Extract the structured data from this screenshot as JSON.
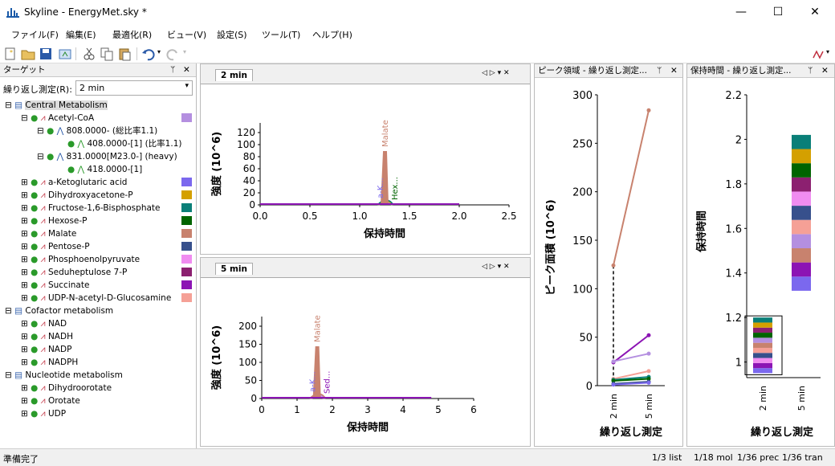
{
  "window": {
    "title": "Skyline - EnergyMet.sky *",
    "minimize": "—",
    "maximize": "☐",
    "close": "✕"
  },
  "menu": [
    "ファイル(F)",
    "編集(E)",
    "最適化(R)",
    "ビュー(V)",
    "設定(S)",
    "ツール(T)",
    "ヘルプ(H)"
  ],
  "targets": {
    "title": "ターゲット",
    "replicate_label": "繰り返し測定(R):",
    "replicate_value": "2 min",
    "groups": [
      {
        "name": "Central Metabolism",
        "children": [
          {
            "name": "Acetyl-CoA",
            "color": "#b48fe0",
            "expanded": true,
            "precursors": [
              {
                "label": "808.0000- (総比率1.1)",
                "transition": "408.0000-[1] (比率1.1)"
              },
              {
                "label": "831.0000[M23.0-] (heavy)",
                "transition": "418.0000-[1]"
              }
            ]
          },
          {
            "name": "a-Ketoglutaric acid",
            "color": "#7b68ee"
          },
          {
            "name": "Dihydroxyacetone-P",
            "color": "#d4a000"
          },
          {
            "name": "Fructose-1,6-Bisphosphate",
            "color": "#0a7f78"
          },
          {
            "name": "Hexose-P",
            "color": "#006400"
          },
          {
            "name": "Malate",
            "color": "#c8826e"
          },
          {
            "name": "Pentose-P",
            "color": "#37508c"
          },
          {
            "name": "Phosphoenolpyruvate",
            "color": "#f08cf0"
          },
          {
            "name": "Seduheptulose 7-P",
            "color": "#8c2070"
          },
          {
            "name": "Succinate",
            "color": "#8c14b4"
          },
          {
            "name": "UDP-N-acetyl-D-Glucosamine",
            "color": "#f5a096"
          }
        ]
      },
      {
        "name": "Cofactor metabolism",
        "children": [
          {
            "name": "NAD"
          },
          {
            "name": "NADH"
          },
          {
            "name": "NADP"
          },
          {
            "name": "NADPH"
          }
        ]
      },
      {
        "name": "Nucleotide metabolism",
        "children": [
          {
            "name": "Dihydroorotate"
          },
          {
            "name": "Orotate"
          },
          {
            "name": "UDP"
          }
        ]
      }
    ]
  },
  "chrom1": {
    "tab": "2 min",
    "ylabel": "強度 (10^6)",
    "xlabel": "保持時間",
    "yticks": [
      "0",
      "20",
      "40",
      "60",
      "80",
      "100",
      "120"
    ],
    "xticks": [
      "0.0",
      "0.5",
      "1.0",
      "1.5",
      "2.0",
      "2.5"
    ],
    "peak_labels": [
      "Malate",
      "a-K...",
      "Hex..."
    ]
  },
  "chrom2": {
    "tab": "5 min",
    "ylabel": "強度 (10^6)",
    "xlabel": "保持時間",
    "yticks": [
      "0",
      "50",
      "100",
      "150",
      "200"
    ],
    "xticks": [
      "0",
      "1",
      "2",
      "3",
      "4",
      "5",
      "6"
    ],
    "peak_labels": [
      "Malate",
      "a-K...",
      "Sed..."
    ]
  },
  "peakarea": {
    "title": "ピーク領域 - 繰り返し測定...",
    "ylabel": "ピーク面積 (10^6)",
    "xlabel": "繰り返し測定",
    "yticks": [
      "0",
      "50",
      "100",
      "150",
      "200",
      "250",
      "300"
    ],
    "categories": [
      "2 min",
      "5 min"
    ],
    "chart_data": {
      "type": "line",
      "categories": [
        "2 min",
        "5 min"
      ],
      "ylim": [
        0,
        300
      ],
      "series": [
        {
          "color": "#c8826e",
          "values": [
            124,
            284
          ]
        },
        {
          "color": "#8c14b4",
          "values": [
            24,
            52
          ]
        },
        {
          "color": "#b48fe0",
          "values": [
            25,
            33
          ]
        },
        {
          "color": "#f5a096",
          "values": [
            7,
            15
          ]
        },
        {
          "color": "#0a7f78",
          "values": [
            6,
            9
          ]
        },
        {
          "color": "#006400",
          "values": [
            5,
            7
          ]
        },
        {
          "color": "#37508c",
          "values": [
            2,
            4
          ]
        },
        {
          "color": "#7b68ee",
          "values": [
            1,
            3
          ]
        }
      ]
    }
  },
  "retention": {
    "title": "保持時間 - 繰り返し測定...",
    "ylabel": "保持時間",
    "xlabel": "繰り返し測定",
    "yticks": [
      "1",
      "1.2",
      "1.4",
      "1.6",
      "1.8",
      "2",
      "2.2"
    ],
    "categories": [
      "2 min",
      "5 min"
    ],
    "chart_data": {
      "type": "bar",
      "categories": [
        "2 min",
        "5 min"
      ],
      "ylim": [
        0.93,
        2.2
      ],
      "bars": [
        {
          "category": "2 min",
          "range": [
            0.95,
            1.2
          ],
          "colors": [
            "#7b68ee",
            "#8c14b4",
            "#f08cf0",
            "#37508c",
            "#f5a096",
            "#c8826e",
            "#b48fe0",
            "#006400",
            "#8c2070",
            "#d4a000",
            "#0a7f78"
          ]
        },
        {
          "category": "5 min",
          "range": [
            1.32,
            2.02
          ],
          "colors": [
            "#7b68ee",
            "#8c14b4",
            "#c8826e",
            "#b48fe0",
            "#f5a096",
            "#37508c",
            "#f08cf0",
            "#8c2070",
            "#006400",
            "#d4a000",
            "#0a7f78"
          ]
        }
      ]
    }
  },
  "status": {
    "left": "準備完了",
    "right": [
      "1/3 list",
      "1/18 mol",
      "1/36 prec",
      "1/36 tran"
    ]
  }
}
